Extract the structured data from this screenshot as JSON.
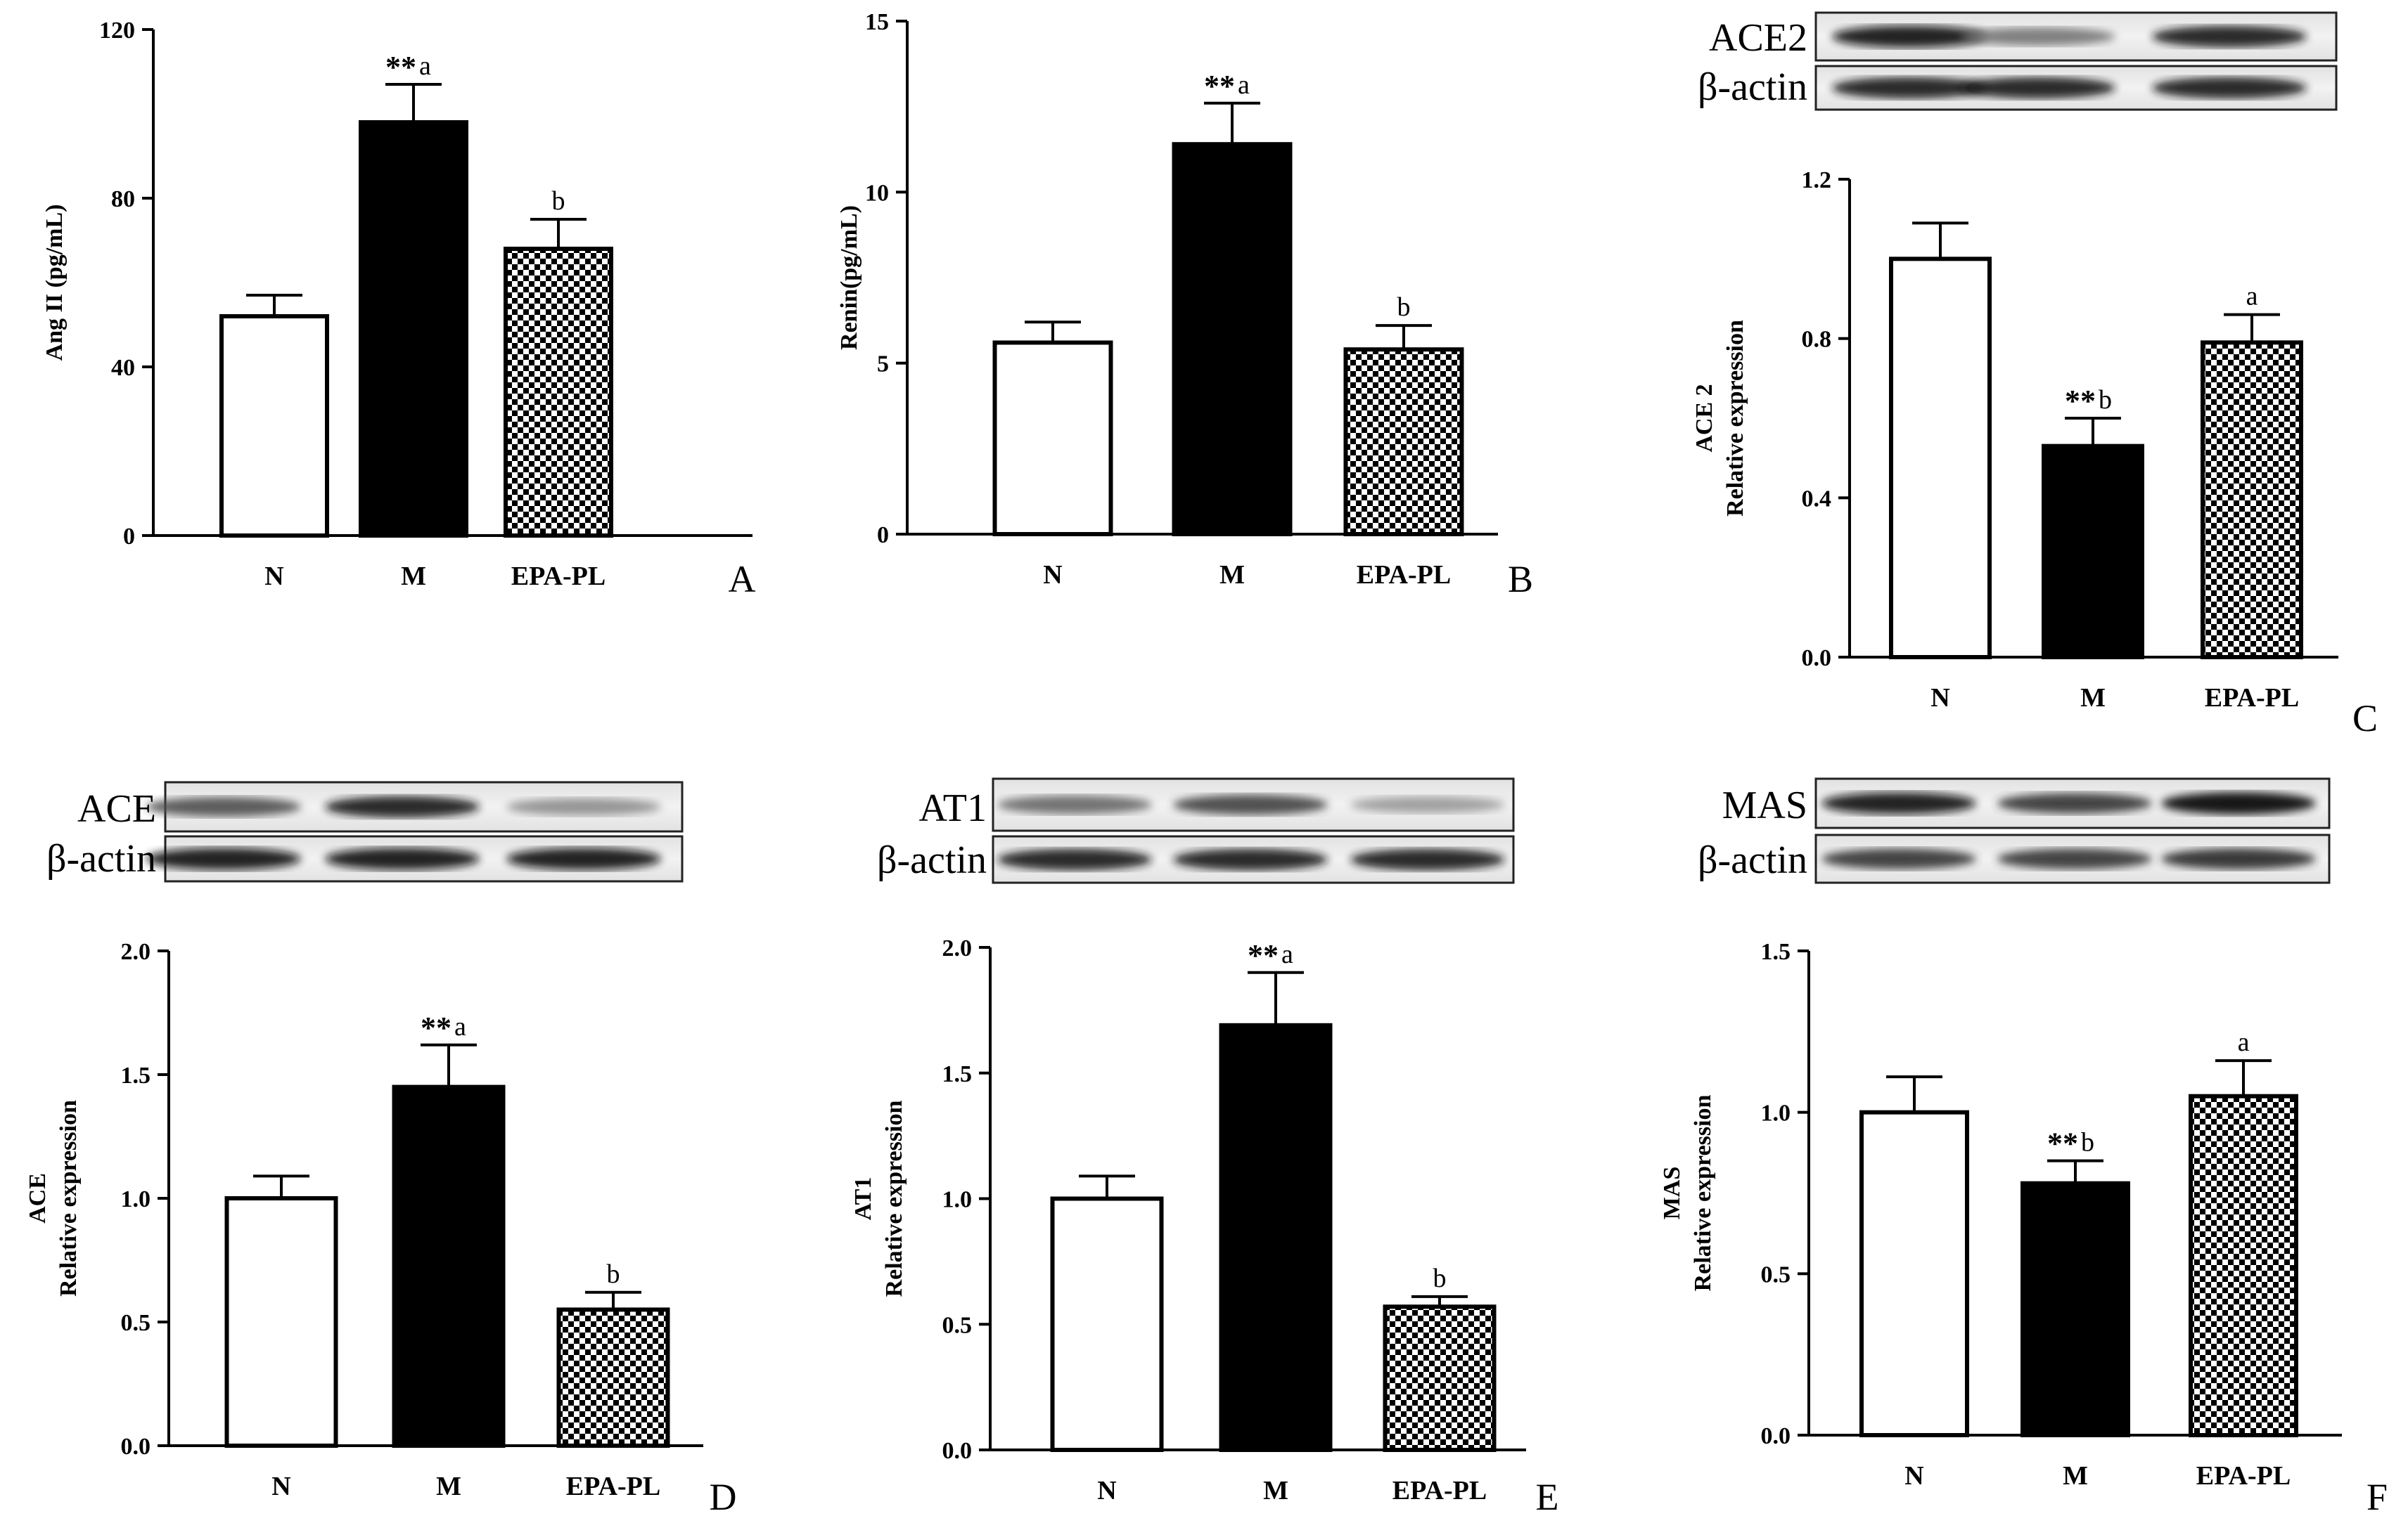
{
  "colors": {
    "fill_N": "#ffffff",
    "fill_M": "#000000",
    "stroke": "#000000"
  },
  "blots": [
    {
      "panel": "C",
      "rows": [
        {
          "label": "ACE2",
          "intensity": [
            0.95,
            0.55,
            0.9
          ]
        },
        {
          "label": "β-actin",
          "intensity": [
            0.9,
            0.9,
            0.9
          ]
        }
      ]
    },
    {
      "panel": "D",
      "rows": [
        {
          "label": "ACE",
          "intensity": [
            0.7,
            0.9,
            0.45
          ]
        },
        {
          "label": "β-actin",
          "intensity": [
            0.95,
            0.95,
            0.95
          ]
        }
      ]
    },
    {
      "panel": "E",
      "rows": [
        {
          "label": "AT1",
          "intensity": [
            0.6,
            0.75,
            0.4
          ]
        },
        {
          "label": "β-actin",
          "intensity": [
            0.9,
            0.9,
            0.9
          ]
        }
      ]
    },
    {
      "panel": "F",
      "rows": [
        {
          "label": "MAS",
          "intensity": [
            0.95,
            0.8,
            1.0
          ]
        },
        {
          "label": "β-actin",
          "intensity": [
            0.8,
            0.8,
            0.85
          ]
        }
      ]
    }
  ],
  "chart_data": [
    {
      "panel": "A",
      "type": "bar",
      "categories": [
        "N",
        "M",
        "EPA-PL"
      ],
      "values": [
        52,
        98,
        68
      ],
      "errors": [
        5,
        9,
        7
      ],
      "annotations": [
        {
          "stars": "",
          "letter": ""
        },
        {
          "stars": "**",
          "letter": "a"
        },
        {
          "stars": "",
          "letter": "b"
        }
      ],
      "ylabel_lines": [
        "Ang II (pg/mL)"
      ],
      "ylim": [
        0,
        120
      ],
      "yticks": [
        0,
        40,
        80,
        120
      ],
      "ytick_labels": [
        "0",
        "40",
        "80",
        "120"
      ]
    },
    {
      "panel": "B",
      "type": "bar",
      "categories": [
        "N",
        "M",
        "EPA-PL"
      ],
      "values": [
        5.6,
        11.4,
        5.4
      ],
      "errors": [
        0.6,
        1.2,
        0.7
      ],
      "annotations": [
        {
          "stars": "",
          "letter": ""
        },
        {
          "stars": "**",
          "letter": "a"
        },
        {
          "stars": "",
          "letter": "b"
        }
      ],
      "ylabel_lines": [
        "Renin(pg/mL)"
      ],
      "ylim": [
        0,
        15
      ],
      "yticks": [
        0,
        5,
        10,
        15
      ],
      "ytick_labels": [
        "0",
        "5",
        "10",
        "15"
      ]
    },
    {
      "panel": "C",
      "type": "bar",
      "categories": [
        "N",
        "M",
        "EPA-PL"
      ],
      "values": [
        1.0,
        0.53,
        0.79
      ],
      "errors": [
        0.09,
        0.07,
        0.07
      ],
      "annotations": [
        {
          "stars": "",
          "letter": ""
        },
        {
          "stars": "**",
          "letter": "b"
        },
        {
          "stars": "",
          "letter": "a"
        }
      ],
      "ylabel_lines": [
        "ACE 2",
        "Relative expression"
      ],
      "ylim": [
        0,
        1.2
      ],
      "yticks": [
        0,
        0.4,
        0.8,
        1.2
      ],
      "ytick_labels": [
        "0.0",
        "0.4",
        "0.8",
        "1.2"
      ]
    },
    {
      "panel": "D",
      "type": "bar",
      "categories": [
        "N",
        "M",
        "EPA-PL"
      ],
      "values": [
        1.0,
        1.45,
        0.55
      ],
      "errors": [
        0.09,
        0.17,
        0.07
      ],
      "annotations": [
        {
          "stars": "",
          "letter": ""
        },
        {
          "stars": "**",
          "letter": "a"
        },
        {
          "stars": "",
          "letter": "b"
        }
      ],
      "ylabel_lines": [
        "ACE",
        "Relative expression"
      ],
      "ylim": [
        0,
        2.0
      ],
      "yticks": [
        0,
        0.5,
        1.0,
        1.5,
        2.0
      ],
      "ytick_labels": [
        "0.0",
        "0.5",
        "1.0",
        "1.5",
        "2.0"
      ]
    },
    {
      "panel": "E",
      "type": "bar",
      "categories": [
        "N",
        "M",
        "EPA-PL"
      ],
      "values": [
        1.0,
        1.69,
        0.57
      ],
      "errors": [
        0.09,
        0.21,
        0.04
      ],
      "annotations": [
        {
          "stars": "",
          "letter": ""
        },
        {
          "stars": "**",
          "letter": "a"
        },
        {
          "stars": "",
          "letter": "b"
        }
      ],
      "ylabel_lines": [
        "AT1",
        "Relative expression"
      ],
      "ylim": [
        0,
        2.0
      ],
      "yticks": [
        0,
        0.5,
        1.0,
        1.5,
        2.0
      ],
      "ytick_labels": [
        "0.0",
        "0.5",
        "1.0",
        "1.5",
        "2.0"
      ]
    },
    {
      "panel": "F",
      "type": "bar",
      "categories": [
        "N",
        "M",
        "EPA-PL"
      ],
      "values": [
        1.0,
        0.78,
        1.05
      ],
      "errors": [
        0.11,
        0.07,
        0.11
      ],
      "annotations": [
        {
          "stars": "",
          "letter": ""
        },
        {
          "stars": "**",
          "letter": "b"
        },
        {
          "stars": "",
          "letter": "a"
        }
      ],
      "ylabel_lines": [
        "MAS",
        "Relative expression"
      ],
      "ylim": [
        0,
        1.5
      ],
      "yticks": [
        0,
        0.5,
        1.0,
        1.5
      ],
      "ytick_labels": [
        "0.0",
        "0.5",
        "1.0",
        "1.5"
      ]
    }
  ]
}
